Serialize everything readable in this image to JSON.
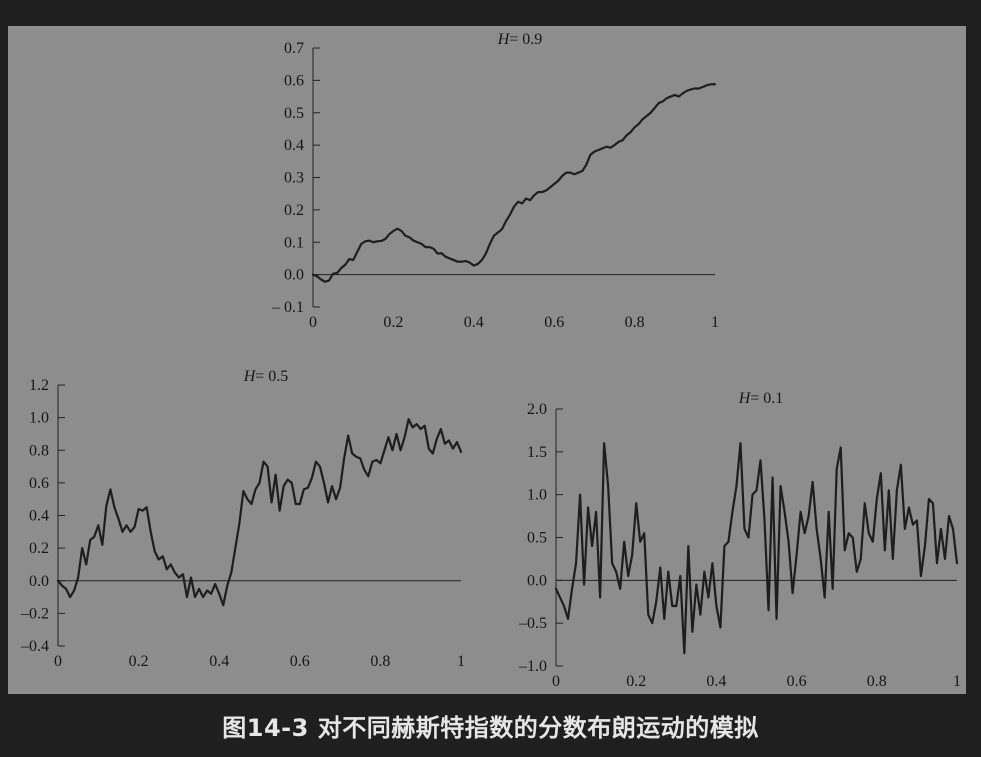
{
  "caption": "图14-3 对不同赫斯特指数的分数布朗运动的模拟",
  "colors": {
    "background": "#1f1f1f",
    "panel": "#8d8d8d",
    "line": "#1e1e1e",
    "caption": "#e6e6e6"
  },
  "chart_data": [
    {
      "type": "line",
      "title": "H = 0.9",
      "title_var": "H",
      "title_value": "= 0.9",
      "xlim": [
        0,
        1
      ],
      "ylim": [
        -0.1,
        0.7
      ],
      "x_ticks": [
        0,
        0.2,
        0.4,
        0.6,
        0.8,
        1
      ],
      "x_tick_labels": [
        "0",
        "0.2",
        "0.4",
        "0.6",
        "0.8",
        "1"
      ],
      "y_ticks": [
        -0.1,
        0,
        0.1,
        0.2,
        0.3,
        0.4,
        0.5,
        0.6,
        0.7
      ],
      "y_tick_labels": [
        "– 0.1",
        "0.0",
        "0.1",
        "0.2",
        "0.3",
        "0.4",
        "0.5",
        "0.6",
        "0.7"
      ],
      "zero_line": true,
      "grid": false,
      "x": [
        0,
        0.01,
        0.02,
        0.03,
        0.04,
        0.05,
        0.06,
        0.07,
        0.08,
        0.09,
        0.1,
        0.11,
        0.12,
        0.13,
        0.14,
        0.15,
        0.16,
        0.17,
        0.18,
        0.19,
        0.2,
        0.21,
        0.22,
        0.23,
        0.24,
        0.25,
        0.26,
        0.27,
        0.28,
        0.29,
        0.3,
        0.31,
        0.32,
        0.33,
        0.34,
        0.35,
        0.36,
        0.37,
        0.38,
        0.39,
        0.4,
        0.41,
        0.42,
        0.43,
        0.44,
        0.45,
        0.46,
        0.47,
        0.48,
        0.49,
        0.5,
        0.51,
        0.52,
        0.53,
        0.54,
        0.55,
        0.56,
        0.57,
        0.58,
        0.59,
        0.6,
        0.61,
        0.62,
        0.63,
        0.64,
        0.65,
        0.66,
        0.67,
        0.68,
        0.69,
        0.7,
        0.71,
        0.72,
        0.73,
        0.74,
        0.75,
        0.76,
        0.77,
        0.78,
        0.79,
        0.8,
        0.81,
        0.82,
        0.83,
        0.84,
        0.85,
        0.86,
        0.87,
        0.88,
        0.89,
        0.9,
        0.91,
        0.92,
        0.93,
        0.94,
        0.95,
        0.96,
        0.97,
        0.98,
        0.99,
        1
      ],
      "y": [
        0,
        -0.005,
        -0.015,
        -0.022,
        -0.018,
        0.003,
        0.005,
        0.02,
        0.03,
        0.048,
        0.045,
        0.07,
        0.095,
        0.103,
        0.105,
        0.1,
        0.103,
        0.104,
        0.11,
        0.125,
        0.135,
        0.142,
        0.135,
        0.12,
        0.115,
        0.105,
        0.1,
        0.095,
        0.085,
        0.085,
        0.08,
        0.065,
        0.066,
        0.055,
        0.05,
        0.045,
        0.04,
        0.04,
        0.042,
        0.037,
        0.028,
        0.033,
        0.045,
        0.065,
        0.095,
        0.12,
        0.13,
        0.14,
        0.165,
        0.185,
        0.21,
        0.225,
        0.22,
        0.235,
        0.23,
        0.245,
        0.255,
        0.255,
        0.26,
        0.27,
        0.28,
        0.29,
        0.305,
        0.315,
        0.315,
        0.31,
        0.315,
        0.32,
        0.34,
        0.37,
        0.38,
        0.385,
        0.39,
        0.395,
        0.392,
        0.4,
        0.41,
        0.415,
        0.43,
        0.44,
        0.455,
        0.465,
        0.48,
        0.49,
        0.5,
        0.515,
        0.53,
        0.535,
        0.545,
        0.55,
        0.555,
        0.55,
        0.56,
        0.568,
        0.572,
        0.575,
        0.575,
        0.58,
        0.585,
        0.588,
        0.588
      ]
    },
    {
      "type": "line",
      "title": "H = 0.5",
      "title_var": "H",
      "title_value": "= 0.5",
      "xlim": [
        0,
        1
      ],
      "ylim": [
        -0.4,
        1.2
      ],
      "x_ticks": [
        0,
        0.2,
        0.4,
        0.6,
        0.8,
        1
      ],
      "x_tick_labels": [
        "0",
        "0.2",
        "0.4",
        "0.6",
        "0.8",
        "1"
      ],
      "y_ticks": [
        -0.4,
        -0.2,
        0,
        0.2,
        0.4,
        0.6,
        0.8,
        1.0,
        1.2
      ],
      "y_tick_labels": [
        "–0.4",
        "–0.2",
        "0.0",
        "0.2",
        "0.4",
        "0.6",
        "0.8",
        "1.0",
        "1.2"
      ],
      "zero_line": true,
      "grid": false,
      "x": [
        0,
        0.01,
        0.02,
        0.03,
        0.04,
        0.05,
        0.06,
        0.07,
        0.08,
        0.09,
        0.1,
        0.11,
        0.12,
        0.13,
        0.14,
        0.15,
        0.16,
        0.17,
        0.18,
        0.19,
        0.2,
        0.21,
        0.22,
        0.23,
        0.24,
        0.25,
        0.26,
        0.27,
        0.28,
        0.29,
        0.3,
        0.31,
        0.32,
        0.33,
        0.34,
        0.35,
        0.36,
        0.37,
        0.38,
        0.39,
        0.4,
        0.41,
        0.42,
        0.43,
        0.44,
        0.45,
        0.46,
        0.47,
        0.48,
        0.49,
        0.5,
        0.51,
        0.52,
        0.53,
        0.54,
        0.55,
        0.56,
        0.57,
        0.58,
        0.59,
        0.6,
        0.61,
        0.62,
        0.63,
        0.64,
        0.65,
        0.66,
        0.67,
        0.68,
        0.69,
        0.7,
        0.71,
        0.72,
        0.73,
        0.74,
        0.75,
        0.76,
        0.77,
        0.78,
        0.79,
        0.8,
        0.81,
        0.82,
        0.83,
        0.84,
        0.85,
        0.86,
        0.87,
        0.88,
        0.89,
        0.9,
        0.91,
        0.92,
        0.93,
        0.94,
        0.95,
        0.96,
        0.97,
        0.98,
        0.99,
        1
      ],
      "y": [
        0,
        -0.03,
        -0.05,
        -0.1,
        -0.06,
        0.02,
        0.2,
        0.1,
        0.25,
        0.27,
        0.34,
        0.22,
        0.46,
        0.56,
        0.45,
        0.38,
        0.3,
        0.34,
        0.3,
        0.33,
        0.44,
        0.43,
        0.45,
        0.3,
        0.18,
        0.13,
        0.15,
        0.07,
        0.1,
        0.05,
        0.02,
        0.04,
        -0.1,
        0.02,
        -0.1,
        -0.05,
        -0.1,
        -0.06,
        -0.08,
        -0.02,
        -0.08,
        -0.15,
        -0.03,
        0.05,
        0.2,
        0.35,
        0.55,
        0.5,
        0.47,
        0.56,
        0.6,
        0.73,
        0.7,
        0.48,
        0.65,
        0.43,
        0.58,
        0.62,
        0.6,
        0.47,
        0.47,
        0.56,
        0.57,
        0.63,
        0.73,
        0.7,
        0.6,
        0.48,
        0.58,
        0.5,
        0.57,
        0.75,
        0.89,
        0.78,
        0.76,
        0.75,
        0.68,
        0.64,
        0.73,
        0.74,
        0.72,
        0.8,
        0.88,
        0.8,
        0.9,
        0.8,
        0.88,
        0.99,
        0.94,
        0.96,
        0.93,
        0.95,
        0.81,
        0.78,
        0.87,
        0.93,
        0.84,
        0.86,
        0.81,
        0.85,
        0.79
      ]
    },
    {
      "type": "line",
      "title": "H = 0.1",
      "title_var": "H",
      "title_value": "= 0.1",
      "xlim": [
        0,
        1
      ],
      "ylim": [
        -1.0,
        2.0
      ],
      "x_ticks": [
        0,
        0.2,
        0.4,
        0.6,
        0.8,
        1
      ],
      "x_tick_labels": [
        "0",
        "0.2",
        "0.4",
        "0.6",
        "0.8",
        "1"
      ],
      "y_ticks": [
        -1.0,
        -0.5,
        0,
        0.5,
        1.0,
        1.5,
        2.0
      ],
      "y_tick_labels": [
        "–1.0",
        "–0.5",
        "0.0",
        "0.5",
        "1.0",
        "1.5",
        "2.0"
      ],
      "zero_line": true,
      "grid": false,
      "x": [
        0,
        0.01,
        0.02,
        0.03,
        0.04,
        0.05,
        0.06,
        0.07,
        0.08,
        0.09,
        0.1,
        0.11,
        0.12,
        0.13,
        0.14,
        0.15,
        0.16,
        0.17,
        0.18,
        0.19,
        0.2,
        0.21,
        0.22,
        0.23,
        0.24,
        0.25,
        0.26,
        0.27,
        0.28,
        0.29,
        0.3,
        0.31,
        0.32,
        0.33,
        0.34,
        0.35,
        0.36,
        0.37,
        0.38,
        0.39,
        0.4,
        0.41,
        0.42,
        0.43,
        0.44,
        0.45,
        0.46,
        0.47,
        0.48,
        0.49,
        0.5,
        0.51,
        0.52,
        0.53,
        0.54,
        0.55,
        0.56,
        0.57,
        0.58,
        0.59,
        0.6,
        0.61,
        0.62,
        0.63,
        0.64,
        0.65,
        0.66,
        0.67,
        0.68,
        0.69,
        0.7,
        0.71,
        0.72,
        0.73,
        0.74,
        0.75,
        0.76,
        0.77,
        0.78,
        0.79,
        0.8,
        0.81,
        0.82,
        0.83,
        0.84,
        0.85,
        0.86,
        0.87,
        0.88,
        0.89,
        0.9,
        0.91,
        0.92,
        0.93,
        0.94,
        0.95,
        0.96,
        0.97,
        0.98,
        0.99,
        1
      ],
      "y": [
        -0.1,
        -0.2,
        -0.3,
        -0.45,
        -0.1,
        0.2,
        1.0,
        -0.05,
        0.85,
        0.4,
        0.8,
        -0.2,
        1.6,
        1.1,
        0.2,
        0.1,
        -0.1,
        0.45,
        0.05,
        0.3,
        0.9,
        0.45,
        0.55,
        -0.4,
        -0.5,
        -0.25,
        0.15,
        -0.45,
        0.1,
        -0.3,
        -0.3,
        0.05,
        -0.85,
        0.4,
        -0.6,
        -0.05,
        -0.4,
        0.1,
        -0.2,
        0.2,
        -0.3,
        -0.55,
        0.4,
        0.45,
        0.8,
        1.1,
        1.6,
        0.6,
        0.5,
        1.0,
        1.05,
        1.4,
        0.7,
        -0.35,
        1.2,
        -0.45,
        1.1,
        0.8,
        0.45,
        -0.15,
        0.3,
        0.8,
        0.55,
        0.75,
        1.15,
        0.6,
        0.25,
        -0.2,
        0.8,
        -0.1,
        1.3,
        1.55,
        0.35,
        0.55,
        0.5,
        0.1,
        0.25,
        0.9,
        0.55,
        0.45,
        0.95,
        1.25,
        0.35,
        1.05,
        0.25,
        1.05,
        1.35,
        0.6,
        0.85,
        0.65,
        0.7,
        0.05,
        0.4,
        0.95,
        0.9,
        0.2,
        0.6,
        0.25,
        0.75,
        0.6,
        0.2
      ]
    }
  ]
}
